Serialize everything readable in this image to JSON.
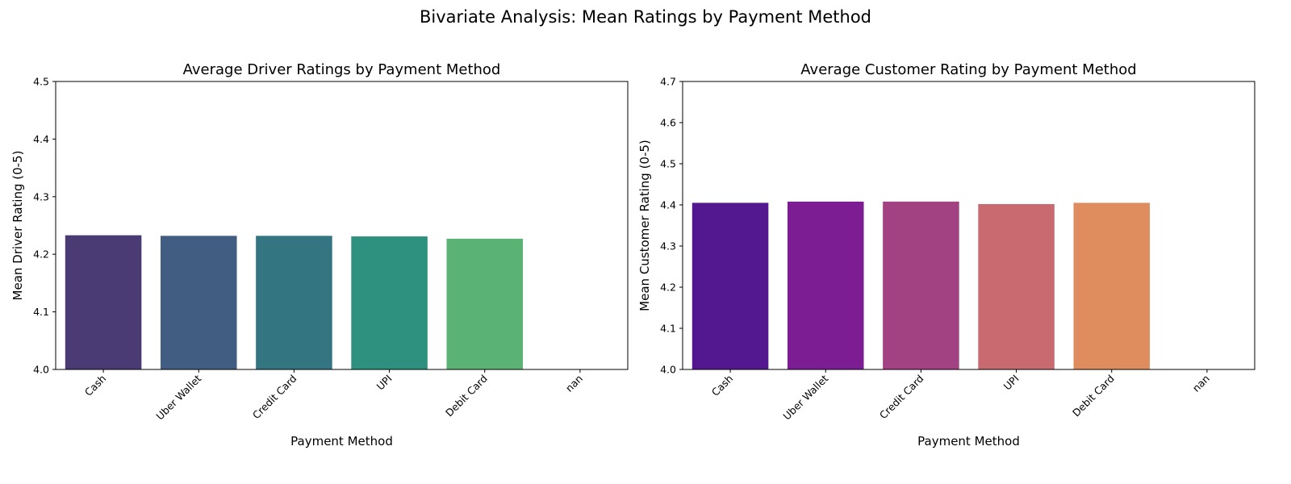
{
  "figure": {
    "suptitle": "Bivariate Analysis: Mean Ratings by Payment Method"
  },
  "chart_data": [
    {
      "type": "bar",
      "title": "Average Driver Ratings by Payment Method",
      "xlabel": "Payment Method",
      "ylabel": "Mean Driver Rating (0-5)",
      "categories": [
        "Cash",
        "Uber Wallet",
        "Credit Card",
        "UPI",
        "Debit Card",
        "nan"
      ],
      "values": [
        4.233,
        4.232,
        4.232,
        4.231,
        4.227,
        null
      ],
      "ylim": [
        4.0,
        4.5
      ],
      "yticks": [
        "4.0",
        "4.1",
        "4.2",
        "4.3",
        "4.4",
        "4.5"
      ],
      "colors": [
        "#4a3b74",
        "#415d81",
        "#337581",
        "#2e917f",
        "#5ab274"
      ],
      "grid": false
    },
    {
      "type": "bar",
      "title": "Average Customer Rating by Payment Method",
      "xlabel": "Payment Method",
      "ylabel": "Mean Customer Rating (0-5)",
      "categories": [
        "Cash",
        "Uber Wallet",
        "Credit Card",
        "UPI",
        "Debit Card",
        "nan"
      ],
      "values": [
        4.405,
        4.408,
        4.408,
        4.402,
        4.405,
        null
      ],
      "ylim": [
        4.0,
        4.7
      ],
      "yticks": [
        "4.0",
        "4.1",
        "4.2",
        "4.3",
        "4.4",
        "4.5",
        "4.6",
        "4.7"
      ],
      "colors": [
        "#53178f",
        "#7c1d94",
        "#a34283",
        "#c96a71",
        "#df8c5e"
      ],
      "grid": false
    }
  ]
}
